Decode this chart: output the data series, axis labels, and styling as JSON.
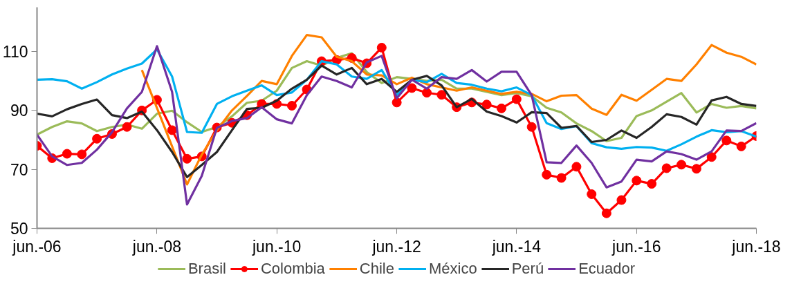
{
  "chart_data": {
    "type": "line",
    "x": [
      "2006-06",
      "2006-09",
      "2006-12",
      "2007-03",
      "2007-06",
      "2007-09",
      "2007-12",
      "2008-03",
      "2008-06",
      "2008-09",
      "2008-12",
      "2009-03",
      "2009-06",
      "2009-09",
      "2009-12",
      "2010-03",
      "2010-06",
      "2010-09",
      "2010-12",
      "2011-03",
      "2011-06",
      "2011-09",
      "2011-12",
      "2012-03",
      "2012-06",
      "2012-09",
      "2012-12",
      "2013-03",
      "2013-06",
      "2013-09",
      "2013-12",
      "2014-03",
      "2014-06",
      "2014-09",
      "2014-12",
      "2015-03",
      "2015-06",
      "2015-09",
      "2015-12",
      "2016-03",
      "2016-06",
      "2016-09",
      "2016-12",
      "2017-03",
      "2017-06",
      "2017-09",
      "2017-12",
      "2018-03",
      "2018-06"
    ],
    "xlim": [
      "2006-06",
      "2018-06"
    ],
    "xticks": [
      {
        "value": "2006-06",
        "label": "jun.-06"
      },
      {
        "value": "2008-06",
        "label": "jun.-08"
      },
      {
        "value": "2010-06",
        "label": "jun.-10"
      },
      {
        "value": "2012-06",
        "label": "jun.-12"
      },
      {
        "value": "2014-06",
        "label": "jun.-14"
      },
      {
        "value": "2016-06",
        "label": "jun.-16"
      },
      {
        "value": "2018-06",
        "label": "jun.-18"
      }
    ],
    "ylim": [
      50,
      125
    ],
    "yticks": [
      50,
      70,
      90,
      110
    ],
    "grid": false,
    "legend": "bottom",
    "line_style": "solid",
    "series": [
      {
        "name": "Brasil",
        "color": "#9bbb59",
        "marker": "none",
        "values": [
          81.8,
          84.4,
          86.3,
          85.6,
          83,
          84.4,
          85.2,
          83.8,
          88.9,
          89.9,
          86,
          82.7,
          84.4,
          88,
          92.6,
          93.3,
          96.7,
          104.4,
          106.7,
          105.2,
          107.8,
          109.4,
          103,
          99.3,
          101.3,
          100.7,
          100,
          100.4,
          97.4,
          97.4,
          96.3,
          95.2,
          95.9,
          94.8,
          90.9,
          89.3,
          85.6,
          83,
          79.6,
          80.7,
          88.1,
          90,
          93,
          95.9,
          89.3,
          92.2,
          90.9,
          91.5,
          90.7
        ]
      },
      {
        "name": "Colombia",
        "color": "#ff0000",
        "marker": "circle",
        "values": [
          78,
          73.8,
          75.3,
          75.1,
          80.4,
          82,
          84.4,
          90,
          93.6,
          83.3,
          73.6,
          74.4,
          84.2,
          85.8,
          88.4,
          92.2,
          92.2,
          91.6,
          97.1,
          106.7,
          107.1,
          107.8,
          106,
          111.3,
          92.7,
          97.6,
          96,
          95.3,
          91.1,
          92.7,
          92,
          90.7,
          93.8,
          84.4,
          68.2,
          67.1,
          70.9,
          61.6,
          55.1,
          59.6,
          66.2,
          65.1,
          70.4,
          71.6,
          70.2,
          74.2,
          79.8,
          77.8,
          81.3
        ]
      },
      {
        "name": "Chile",
        "color": "#ff8000",
        "marker": "none",
        "values": [
          null,
          null,
          null,
          null,
          null,
          null,
          null,
          103.7,
          90.8,
          77.8,
          64.9,
          75,
          83.3,
          90,
          94.9,
          100,
          98.9,
          108.5,
          115.6,
          114.8,
          108.2,
          106.7,
          102.2,
          101.9,
          98.9,
          101.1,
          98.9,
          97.8,
          96.7,
          97.8,
          96.7,
          95.6,
          96.3,
          95.6,
          93.1,
          95,
          95.2,
          90.6,
          88.5,
          95.3,
          93.3,
          97,
          100.7,
          100,
          105.6,
          112.2,
          109.6,
          108.2,
          105.6
        ]
      },
      {
        "name": "México",
        "color": "#00b0f0",
        "marker": "none",
        "values": [
          100.4,
          100.6,
          99.9,
          97.4,
          99.6,
          102.2,
          104.2,
          105.9,
          110.7,
          101.5,
          82.7,
          82.4,
          92.2,
          94.8,
          96.7,
          98.5,
          95.2,
          96.1,
          100.4,
          106.7,
          105.6,
          101.5,
          100.7,
          103.7,
          95.2,
          100.4,
          99.6,
          102.4,
          99.3,
          98.7,
          97.4,
          96.5,
          97.8,
          95.2,
          85.7,
          83.7,
          84.7,
          78.9,
          77.5,
          77,
          77.6,
          77.4,
          76.3,
          78.5,
          81.1,
          83.3,
          82.6,
          83,
          81.1
        ]
      },
      {
        "name": "Perú",
        "color": "#262626",
        "marker": "none",
        "values": [
          88.9,
          88,
          90.4,
          92.2,
          93.7,
          88.4,
          87.4,
          89.6,
          83.3,
          75.9,
          67.4,
          71.5,
          75.9,
          83.3,
          90.5,
          90.9,
          93.3,
          97.4,
          100.4,
          105.2,
          102.2,
          104.4,
          98.9,
          100.7,
          96.3,
          100.4,
          101.7,
          98.5,
          91.1,
          93.9,
          89.6,
          88.1,
          85.9,
          89.4,
          89.1,
          84.1,
          84.7,
          79.3,
          80,
          83.2,
          80.7,
          84.4,
          88.7,
          87.8,
          85.2,
          93.4,
          94.6,
          92.2,
          91.5
        ]
      },
      {
        "name": "Ecuador",
        "color": "#7030a0",
        "marker": "none",
        "values": [
          81.8,
          74.4,
          71.5,
          72.2,
          76.7,
          82.6,
          90.7,
          96.3,
          111.8,
          96.3,
          58.1,
          67.8,
          84.1,
          86.4,
          87.4,
          91.1,
          87,
          85.6,
          95.2,
          101.5,
          100,
          97.8,
          106.3,
          108.5,
          94.1,
          100.4,
          97.4,
          101.3,
          100.7,
          103.7,
          99.8,
          103.1,
          103.1,
          95.2,
          72.4,
          72.2,
          78.1,
          72.2,
          63.9,
          65.9,
          73.3,
          72.7,
          76.1,
          75.2,
          73.3,
          76.1,
          83.2,
          83,
          85.7
        ]
      }
    ]
  }
}
